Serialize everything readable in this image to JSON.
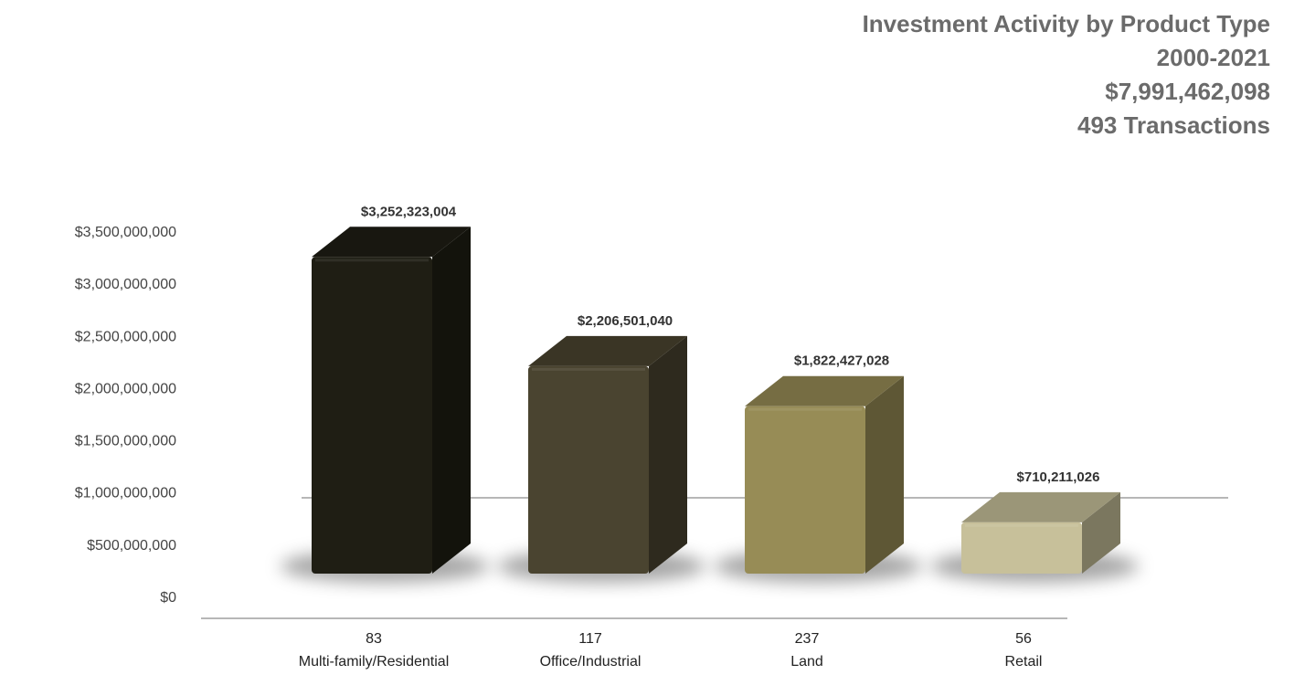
{
  "chart_data": {
    "type": "bar",
    "title": "Investment Activity by Product Type",
    "subtitle_lines": [
      "2000-2021",
      "$7,991,462,098",
      "493 Transactions"
    ],
    "categories": [
      "Multi-family/Residential",
      "Office/Industrial",
      "Land",
      "Retail"
    ],
    "transaction_counts": [
      "83",
      "117",
      "237",
      "56"
    ],
    "values": [
      3252323004,
      2206501040,
      1822427028,
      710211026
    ],
    "data_labels": [
      "$3,252,323,004",
      "$2,206,501,040",
      "$1,822,427,028",
      "$710,211,026"
    ],
    "ylim": [
      0,
      3500000000
    ],
    "yticks": [
      0,
      500000000,
      1000000000,
      1500000000,
      2000000000,
      2500000000,
      3000000000,
      3500000000
    ],
    "ytick_labels": [
      "$0",
      "$500,000,000",
      "$1,000,000,000",
      "$1,500,000,000",
      "$2,000,000,000",
      "$2,500,000,000",
      "$3,000,000,000",
      "$3,500,000,000"
    ],
    "xlabel": "",
    "ylabel": "",
    "grid": false,
    "legend": "none",
    "colors": [
      "#1f1e14",
      "#4a4430",
      "#978c56",
      "#c7c09a"
    ]
  }
}
